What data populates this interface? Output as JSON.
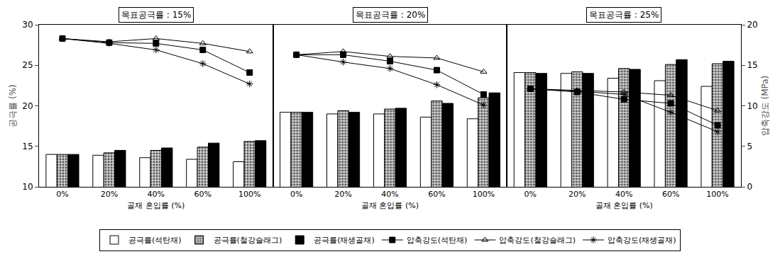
{
  "chart_data": [
    {
      "type": "bar",
      "title": "목표공극률 : 15%",
      "categories": [
        "0%",
        "20%",
        "40%",
        "60%",
        "100%"
      ],
      "xlabel": "골재 혼입률 (%)",
      "ylabel": "공극률 (%)",
      "ylim": [
        10,
        30
      ],
      "yticks": [
        10,
        15,
        20,
        25,
        30
      ],
      "y2lim": [
        0,
        20
      ],
      "series": [
        {
          "name": "공극률(석탄재)",
          "type": "bar",
          "color": "#ffffff",
          "marker": "solid",
          "values": [
            14.0,
            13.9,
            13.6,
            13.4,
            13.1
          ]
        },
        {
          "name": "공극률(철강슬래그)",
          "type": "bar",
          "color": "#d0d0d0",
          "marker": "dotted",
          "values": [
            14.0,
            14.2,
            14.5,
            14.9,
            15.6
          ]
        },
        {
          "name": "공극률(재생골재)",
          "type": "bar",
          "color": "#000000",
          "marker": "solid",
          "values": [
            14.0,
            14.5,
            14.8,
            15.4,
            15.7
          ]
        },
        {
          "name": "압축강도(석탄재)",
          "type": "line",
          "axis": "y2",
          "color": "#000000",
          "marker": "square",
          "line_style": "solid",
          "values": [
            18.3,
            17.8,
            17.7,
            16.9,
            14.1
          ]
        },
        {
          "name": "압축강도(철강슬래그)",
          "type": "line",
          "axis": "y2",
          "color": "#000000",
          "marker": "triangle-up-open",
          "line_style": "solid",
          "values": [
            18.3,
            17.9,
            18.3,
            17.7,
            16.7
          ]
        },
        {
          "name": "압축강도(재생골재)",
          "type": "line",
          "axis": "y2",
          "color": "#000000",
          "marker": "asterisk-open",
          "line_style": "solid",
          "values": [
            18.3,
            17.7,
            16.9,
            15.2,
            12.7
          ]
        }
      ]
    },
    {
      "type": "bar",
      "title": "목표공극률 : 20%",
      "categories": [
        "0%",
        "20%",
        "40%",
        "60%",
        "100%"
      ],
      "xlabel": "골재 혼입률 (%)",
      "ylim": [
        10,
        30
      ],
      "y2lim": [
        0,
        20
      ],
      "legend": "bottom",
      "series": [
        {
          "name": "공극률(석탄재)",
          "type": "bar",
          "color": "#ffffff",
          "marker": "solid",
          "values": [
            19.2,
            19.0,
            19.0,
            18.6,
            18.4
          ]
        },
        {
          "name": "공극률(철강슬래그)",
          "type": "bar",
          "color": "#d0d0d0",
          "marker": "dotted",
          "values": [
            19.2,
            19.4,
            19.6,
            20.6,
            21.0
          ]
        },
        {
          "name": "공극률(재생골재)",
          "type": "bar",
          "color": "#000000",
          "marker": "solid",
          "values": [
            19.2,
            19.2,
            19.7,
            20.3,
            21.6
          ]
        },
        {
          "name": "압축강도(석탄재)",
          "type": "line",
          "axis": "y2",
          "color": "#000000",
          "marker": "square",
          "line_style": "solid",
          "values": [
            16.3,
            16.3,
            15.5,
            14.4,
            11.4
          ]
        },
        {
          "name": "압축강도(철강슬래그)",
          "type": "line",
          "axis": "y2",
          "color": "#000000",
          "marker": "triangle-up-open",
          "line_style": "solid",
          "values": [
            16.3,
            16.7,
            16.1,
            15.9,
            14.2
          ]
        },
        {
          "name": "압축강도(재생골재)",
          "type": "line",
          "axis": "y2",
          "color": "#000000",
          "marker": "asterisk-open",
          "line_style": "solid",
          "values": [
            16.3,
            15.4,
            14.6,
            12.6,
            10.1
          ]
        }
      ]
    },
    {
      "type": "bar",
      "title": "목표공극률 : 25%",
      "categories": [
        "0%",
        "20%",
        "40%",
        "60%",
        "100%"
      ],
      "xlabel": "골재 혼입률 (%)",
      "y2label": "압축강도 (MPa)",
      "ylim": [
        10,
        30
      ],
      "y2lim": [
        0,
        20
      ],
      "y2ticks": [
        0,
        5,
        10,
        15,
        20
      ],
      "series": [
        {
          "name": "공극률(석탄재)",
          "type": "bar",
          "color": "#ffffff",
          "marker": "solid",
          "values": [
            24.1,
            24.0,
            23.4,
            23.1,
            22.4
          ]
        },
        {
          "name": "공극률(철강슬래그)",
          "type": "bar",
          "color": "#d0d0d0",
          "marker": "dotted",
          "values": [
            24.1,
            24.2,
            24.6,
            25.1,
            25.2
          ]
        },
        {
          "name": "공극률(재생골재)",
          "type": "bar",
          "color": "#000000",
          "marker": "solid",
          "values": [
            24.0,
            24.0,
            24.5,
            25.7,
            25.5
          ]
        },
        {
          "name": "압축강도(석탄재)",
          "type": "line",
          "axis": "y2",
          "color": "#000000",
          "marker": "square",
          "line_style": "solid",
          "values": [
            12.1,
            11.7,
            10.8,
            10.3,
            7.6
          ]
        },
        {
          "name": "압축강도(철강슬래그)",
          "type": "line",
          "axis": "y2",
          "color": "#000000",
          "marker": "triangle-up-open",
          "line_style": "solid",
          "values": [
            12.1,
            11.9,
            11.7,
            11.3,
            9.4
          ]
        },
        {
          "name": "압축강도(재생골재)",
          "type": "line",
          "axis": "y2",
          "color": "#000000",
          "marker": "asterisk-open",
          "line_style": "solid",
          "values": [
            12.1,
            11.8,
            11.4,
            9.2,
            6.8
          ]
        }
      ]
    }
  ]
}
